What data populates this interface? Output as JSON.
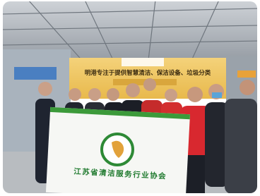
{
  "photo": {
    "booth_headline": "明港专注于提供智慧清洁、保洁设备、垃圾分类",
    "flag_text": "江苏省清洁服务行业协会"
  }
}
